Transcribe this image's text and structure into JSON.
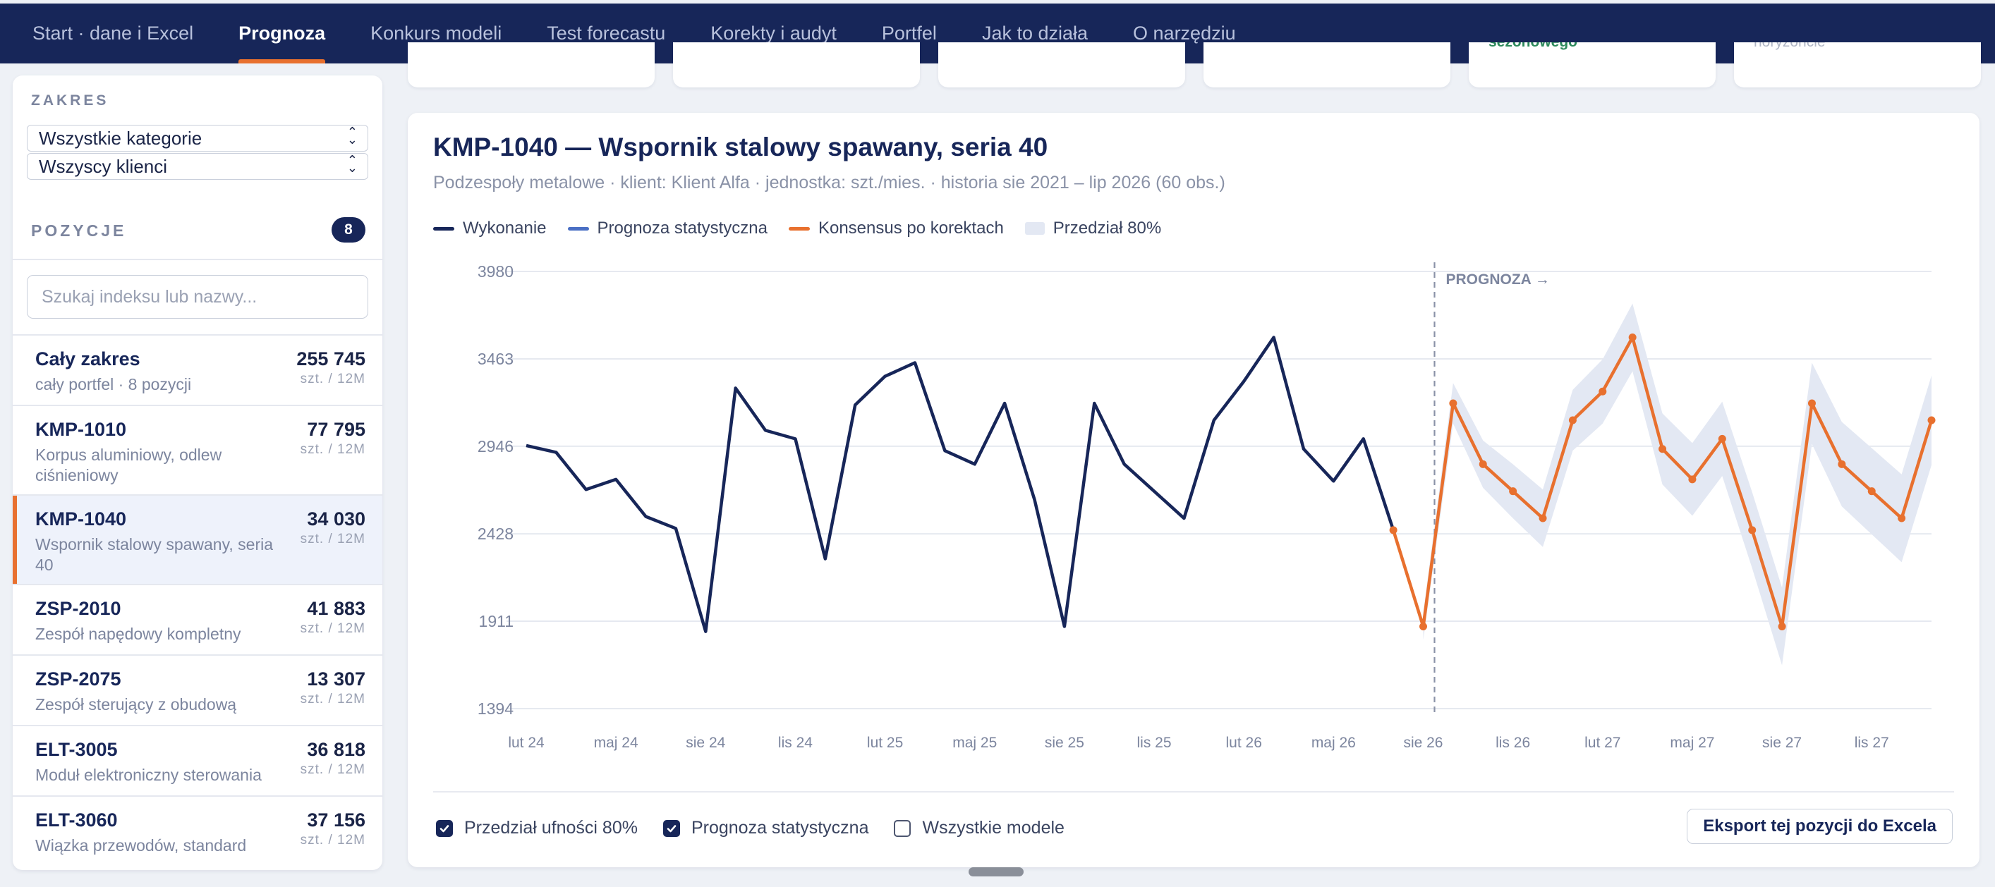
{
  "nav": {
    "tabs": [
      {
        "label": "Start · dane i Excel"
      },
      {
        "label": "Prognoza"
      },
      {
        "label": "Konkurs modeli"
      },
      {
        "label": "Test forecastu"
      },
      {
        "label": "Korekty i audyt"
      },
      {
        "label": "Portfel"
      },
      {
        "label": "Jak to działa"
      },
      {
        "label": "O narzędziu"
      }
    ],
    "active_index": 1
  },
  "top_cards": {
    "snippet_5": "sezonowego",
    "snippet_6": "horyzoncie"
  },
  "sidebar": {
    "scope_label": "ZAKRES",
    "category_select": "Wszystkie kategorie",
    "client_select": "Wszyscy klienci",
    "positions_label": "POZYCJE",
    "positions_count": "8",
    "search_placeholder": "Szukaj indeksu lub nazwy...",
    "items": [
      {
        "code": "Cały zakres",
        "desc": "cały portfel · 8 pozycji",
        "qty": "255 745",
        "unit": "szt. / 12M"
      },
      {
        "code": "KMP-1010",
        "desc": "Korpus aluminiowy, odlew ciśnieniowy",
        "qty": "77 795",
        "unit": "szt. / 12M"
      },
      {
        "code": "KMP-1040",
        "desc": "Wspornik stalowy spawany, seria 40",
        "qty": "34 030",
        "unit": "szt. / 12M"
      },
      {
        "code": "ZSP-2010",
        "desc": "Zespół napędowy kompletny",
        "qty": "41 883",
        "unit": "szt. / 12M"
      },
      {
        "code": "ZSP-2075",
        "desc": "Zespół sterujący z obudową",
        "qty": "13 307",
        "unit": "szt. / 12M"
      },
      {
        "code": "ELT-3005",
        "desc": "Moduł elektroniczny sterowania",
        "qty": "36 818",
        "unit": "szt. / 12M"
      },
      {
        "code": "ELT-3060",
        "desc": "Wiązka przewodów, standard",
        "qty": "37 156",
        "unit": "szt. / 12M"
      }
    ]
  },
  "main": {
    "title": "KMP-1040 — Wspornik stalowy spawany, seria 40",
    "subtitle": "Podzespoły metalowe · klient: Klient Alfa · jednostka: szt./mies. · historia sie 2021 – lip 2026 (60 obs.)",
    "legend": [
      {
        "label": "Wykonanie",
        "color": "#172659"
      },
      {
        "label": "Prognoza statystyczna",
        "color": "#4a6fc4"
      },
      {
        "label": "Konsensus po korektach",
        "color": "#e8702e"
      },
      {
        "label": "Przedział 80%",
        "color": "#e3e8f3"
      }
    ],
    "forecast_marker": "PROGNOZA →",
    "controls": [
      {
        "label": "Przedział ufności 80%",
        "checked": true
      },
      {
        "label": "Prognoza statystyczna",
        "checked": true
      },
      {
        "label": "Wszystkie modele",
        "checked": false
      }
    ],
    "export_label": "Eksport tej pozycji do Excela"
  },
  "chart_data": {
    "type": "line",
    "title": "",
    "xlabel": "",
    "ylabel": "",
    "ylim": [
      1394,
      3980
    ],
    "y_ticks": [
      "3980",
      "3463",
      "2946",
      "2428",
      "1911",
      "1394"
    ],
    "x_ticks": [
      "lut 24",
      "maj 24",
      "sie 24",
      "lis 24",
      "lut 25",
      "maj 25",
      "sie 25",
      "lis 25",
      "lut 26",
      "maj 26",
      "sie 26",
      "lis 26",
      "lut 27",
      "maj 27",
      "sie 27",
      "lis 27"
    ],
    "x_months_start": "lut 24",
    "grid": true,
    "series": [
      {
        "name": "Wykonanie",
        "color": "#172659",
        "values": [
          2950,
          2910,
          2690,
          2750,
          2530,
          2460,
          1850,
          3290,
          3040,
          2990,
          2280,
          3190,
          3360,
          3440,
          2920,
          2840,
          3200,
          2630,
          1880,
          3200,
          2840,
          2680,
          2520,
          3100,
          3330,
          3590,
          2930,
          2740,
          2990,
          2450
        ]
      },
      {
        "name": "Konsensus po korektach",
        "color": "#e8702e",
        "start_index": 29,
        "values": [
          2450,
          1880,
          3200,
          2840,
          2680,
          2520,
          3100,
          3270,
          3590,
          2930,
          2750,
          2990,
          2450,
          1880,
          3200,
          2840,
          2680,
          2520,
          3100
        ]
      }
    ],
    "band_80": {
      "name": "Przedział 80%",
      "start_index": 30,
      "half_width": [
        80,
        120,
        140,
        160,
        170,
        180,
        190,
        200,
        210,
        215,
        220,
        225,
        230,
        240,
        250,
        255,
        260,
        265
      ]
    }
  }
}
